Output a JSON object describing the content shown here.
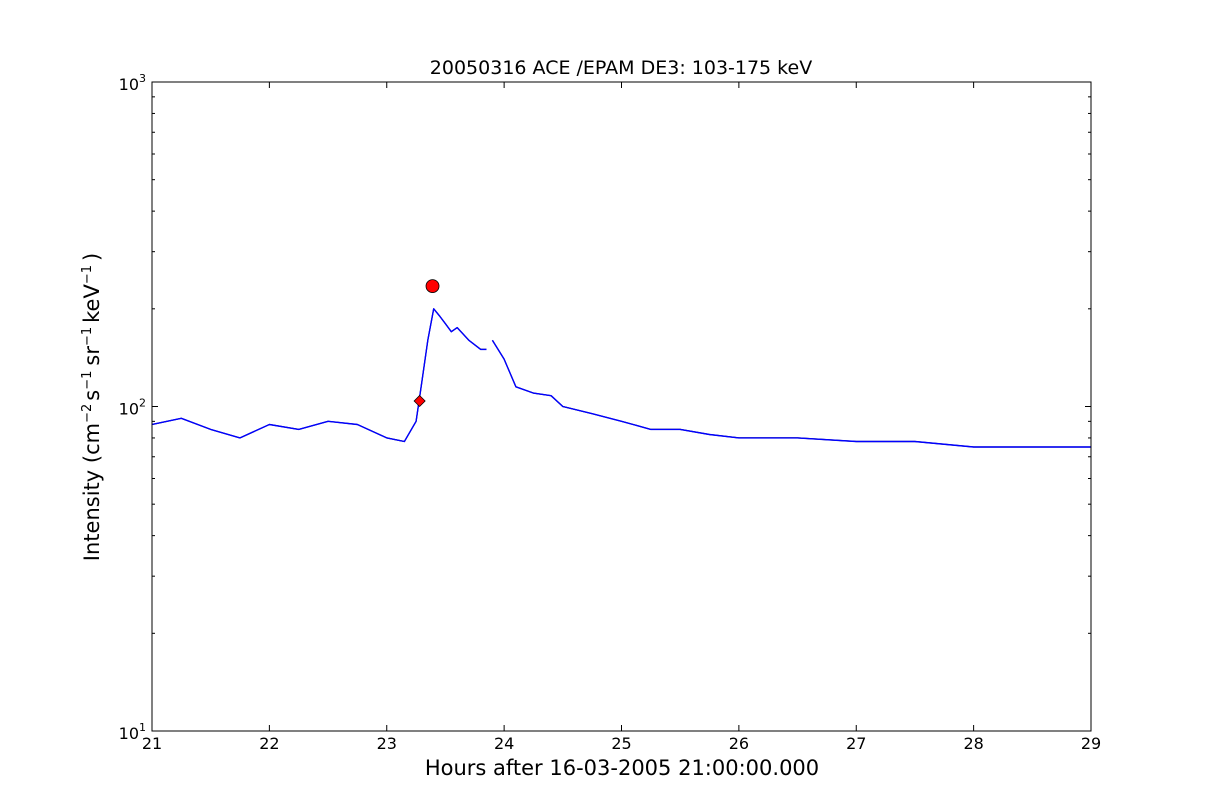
{
  "chart_data": {
    "type": "line",
    "title": "20050316 ACE /EPAM DE3: 103-175 keV",
    "xlabel": "Hours after 16-03-2005 21:00:00.000",
    "ylabel": {
      "prefix": "Intensity (cm",
      "exp1": "−2",
      "part2": "s",
      "exp2": "−1",
      "part3": "sr",
      "exp3": "−1",
      "part4": "keV",
      "exp4": "−1",
      "suffix": ")"
    },
    "xlim": [
      21,
      29
    ],
    "ylim": [
      10,
      1000
    ],
    "yscale": "log",
    "x_ticks": [
      21,
      22,
      23,
      24,
      25,
      26,
      27,
      28,
      29
    ],
    "x_tick_labels": [
      "21",
      "22",
      "23",
      "24",
      "25",
      "26",
      "27",
      "28",
      "29"
    ],
    "y_ticks": [
      {
        "base": "10",
        "exp": "1"
      },
      {
        "base": "10",
        "exp": "2"
      },
      {
        "base": "10",
        "exp": "3"
      }
    ],
    "grid": false,
    "colors": {
      "raw": "#000000",
      "smoothed": "#0000ff",
      "markers": "#ff0000"
    },
    "series": [
      {
        "role": "raw",
        "segments": [
          {
            "x": [
              21.0,
              21.25,
              21.5,
              21.75,
              22.0,
              22.25,
              22.5,
              22.75,
              23.0,
              23.15,
              23.25,
              23.3,
              23.35,
              23.4,
              23.45,
              23.5,
              23.55,
              23.6,
              23.7,
              23.8,
              23.85
            ],
            "y": [
              88,
              92,
              85,
              80,
              88,
              85,
              90,
              88,
              80,
              78,
              90,
              120,
              160,
              200,
              190,
              180,
              170,
              175,
              160,
              150,
              150
            ]
          },
          {
            "x": [
              23.9,
              24.0,
              24.1,
              24.25,
              24.4,
              24.5,
              24.75,
              25.0,
              25.25,
              25.5,
              25.75,
              26.0,
              26.5,
              27.0,
              27.5,
              28.0,
              28.5,
              29.0
            ],
            "y": [
              160,
              140,
              115,
              110,
              108,
              100,
              95,
              90,
              85,
              85,
              82,
              80,
              80,
              78,
              78,
              75,
              75,
              75
            ]
          }
        ]
      },
      {
        "role": "smoothed",
        "segments": [
          {
            "x": [
              21.0,
              21.25,
              21.5,
              21.75,
              22.0,
              22.25,
              22.5,
              22.75,
              23.0,
              23.15,
              23.25,
              23.3,
              23.35,
              23.4,
              23.45,
              23.5,
              23.55,
              23.6,
              23.7,
              23.8,
              23.85
            ],
            "y": [
              88,
              92,
              85,
              80,
              88,
              85,
              90,
              88,
              80,
              78,
              90,
              120,
              160,
              200,
              190,
              180,
              170,
              175,
              160,
              150,
              150
            ]
          },
          {
            "x": [
              23.9,
              24.0,
              24.1,
              24.25,
              24.4,
              24.5,
              24.75,
              25.0,
              25.25,
              25.5,
              25.75,
              26.0,
              26.5,
              27.0,
              27.5,
              28.0,
              28.5,
              29.0
            ],
            "y": [
              160,
              140,
              115,
              110,
              108,
              100,
              95,
              90,
              85,
              85,
              82,
              80,
              80,
              78,
              78,
              75,
              75,
              75
            ]
          }
        ]
      }
    ],
    "markers": [
      {
        "x": 23.28,
        "y": 104,
        "shape": "diamond"
      },
      {
        "x": 23.39,
        "y": 235,
        "shape": "circle"
      }
    ]
  }
}
